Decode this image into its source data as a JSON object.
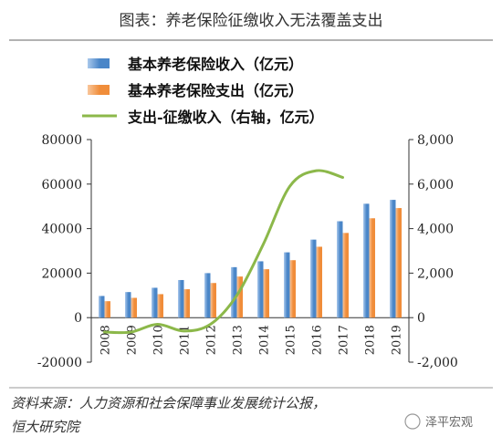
{
  "figure": {
    "title": "图表：养老保险征缴收入无法覆盖支出",
    "source_line1": "资料来源：人力资源和社会保障事业发展统计公报，",
    "source_line2": "恒大研究院",
    "watermark": "泽平宏观"
  },
  "chart_data": {
    "type": "bar",
    "title": "图表：养老保险征缴收入无法覆盖支出",
    "categories": [
      "2008",
      "2009",
      "2010",
      "2011",
      "2012",
      "2013",
      "2014",
      "2015",
      "2016",
      "2017",
      "2018",
      "2019"
    ],
    "series": [
      {
        "name": "基本养老保险收入（亿元）",
        "type": "bar",
        "axis": "left",
        "color": "#4a86c8",
        "values": [
          9740,
          11491,
          13420,
          16895,
          20001,
          22680,
          25310,
          29341,
          35058,
          43310,
          51168,
          52919
        ]
      },
      {
        "name": "基本养老保险支出（亿元）",
        "type": "bar",
        "axis": "left",
        "color": "#f08d3a",
        "values": [
          7390,
          8894,
          10555,
          12765,
          15562,
          18470,
          21755,
          25813,
          31854,
          38052,
          44645,
          49228
        ]
      },
      {
        "name": "支出-征缴收入（右轴，亿元）",
        "type": "line",
        "axis": "right",
        "color": "#8cb84a",
        "values": [
          -650,
          -650,
          -300,
          -600,
          -300,
          1000,
          3300,
          5900,
          6600,
          6300,
          null,
          null
        ]
      }
    ],
    "y_left": {
      "ticks": [
        "80000",
        "60000",
        "40000",
        "20000",
        "0",
        "-20000"
      ],
      "range": [
        -20000,
        80000
      ]
    },
    "y_right": {
      "ticks": [
        "8,000",
        "6,000",
        "4,000",
        "2,000",
        "0",
        "-2,000"
      ],
      "range": [
        -2000,
        8000
      ]
    },
    "legend_position": "top"
  }
}
